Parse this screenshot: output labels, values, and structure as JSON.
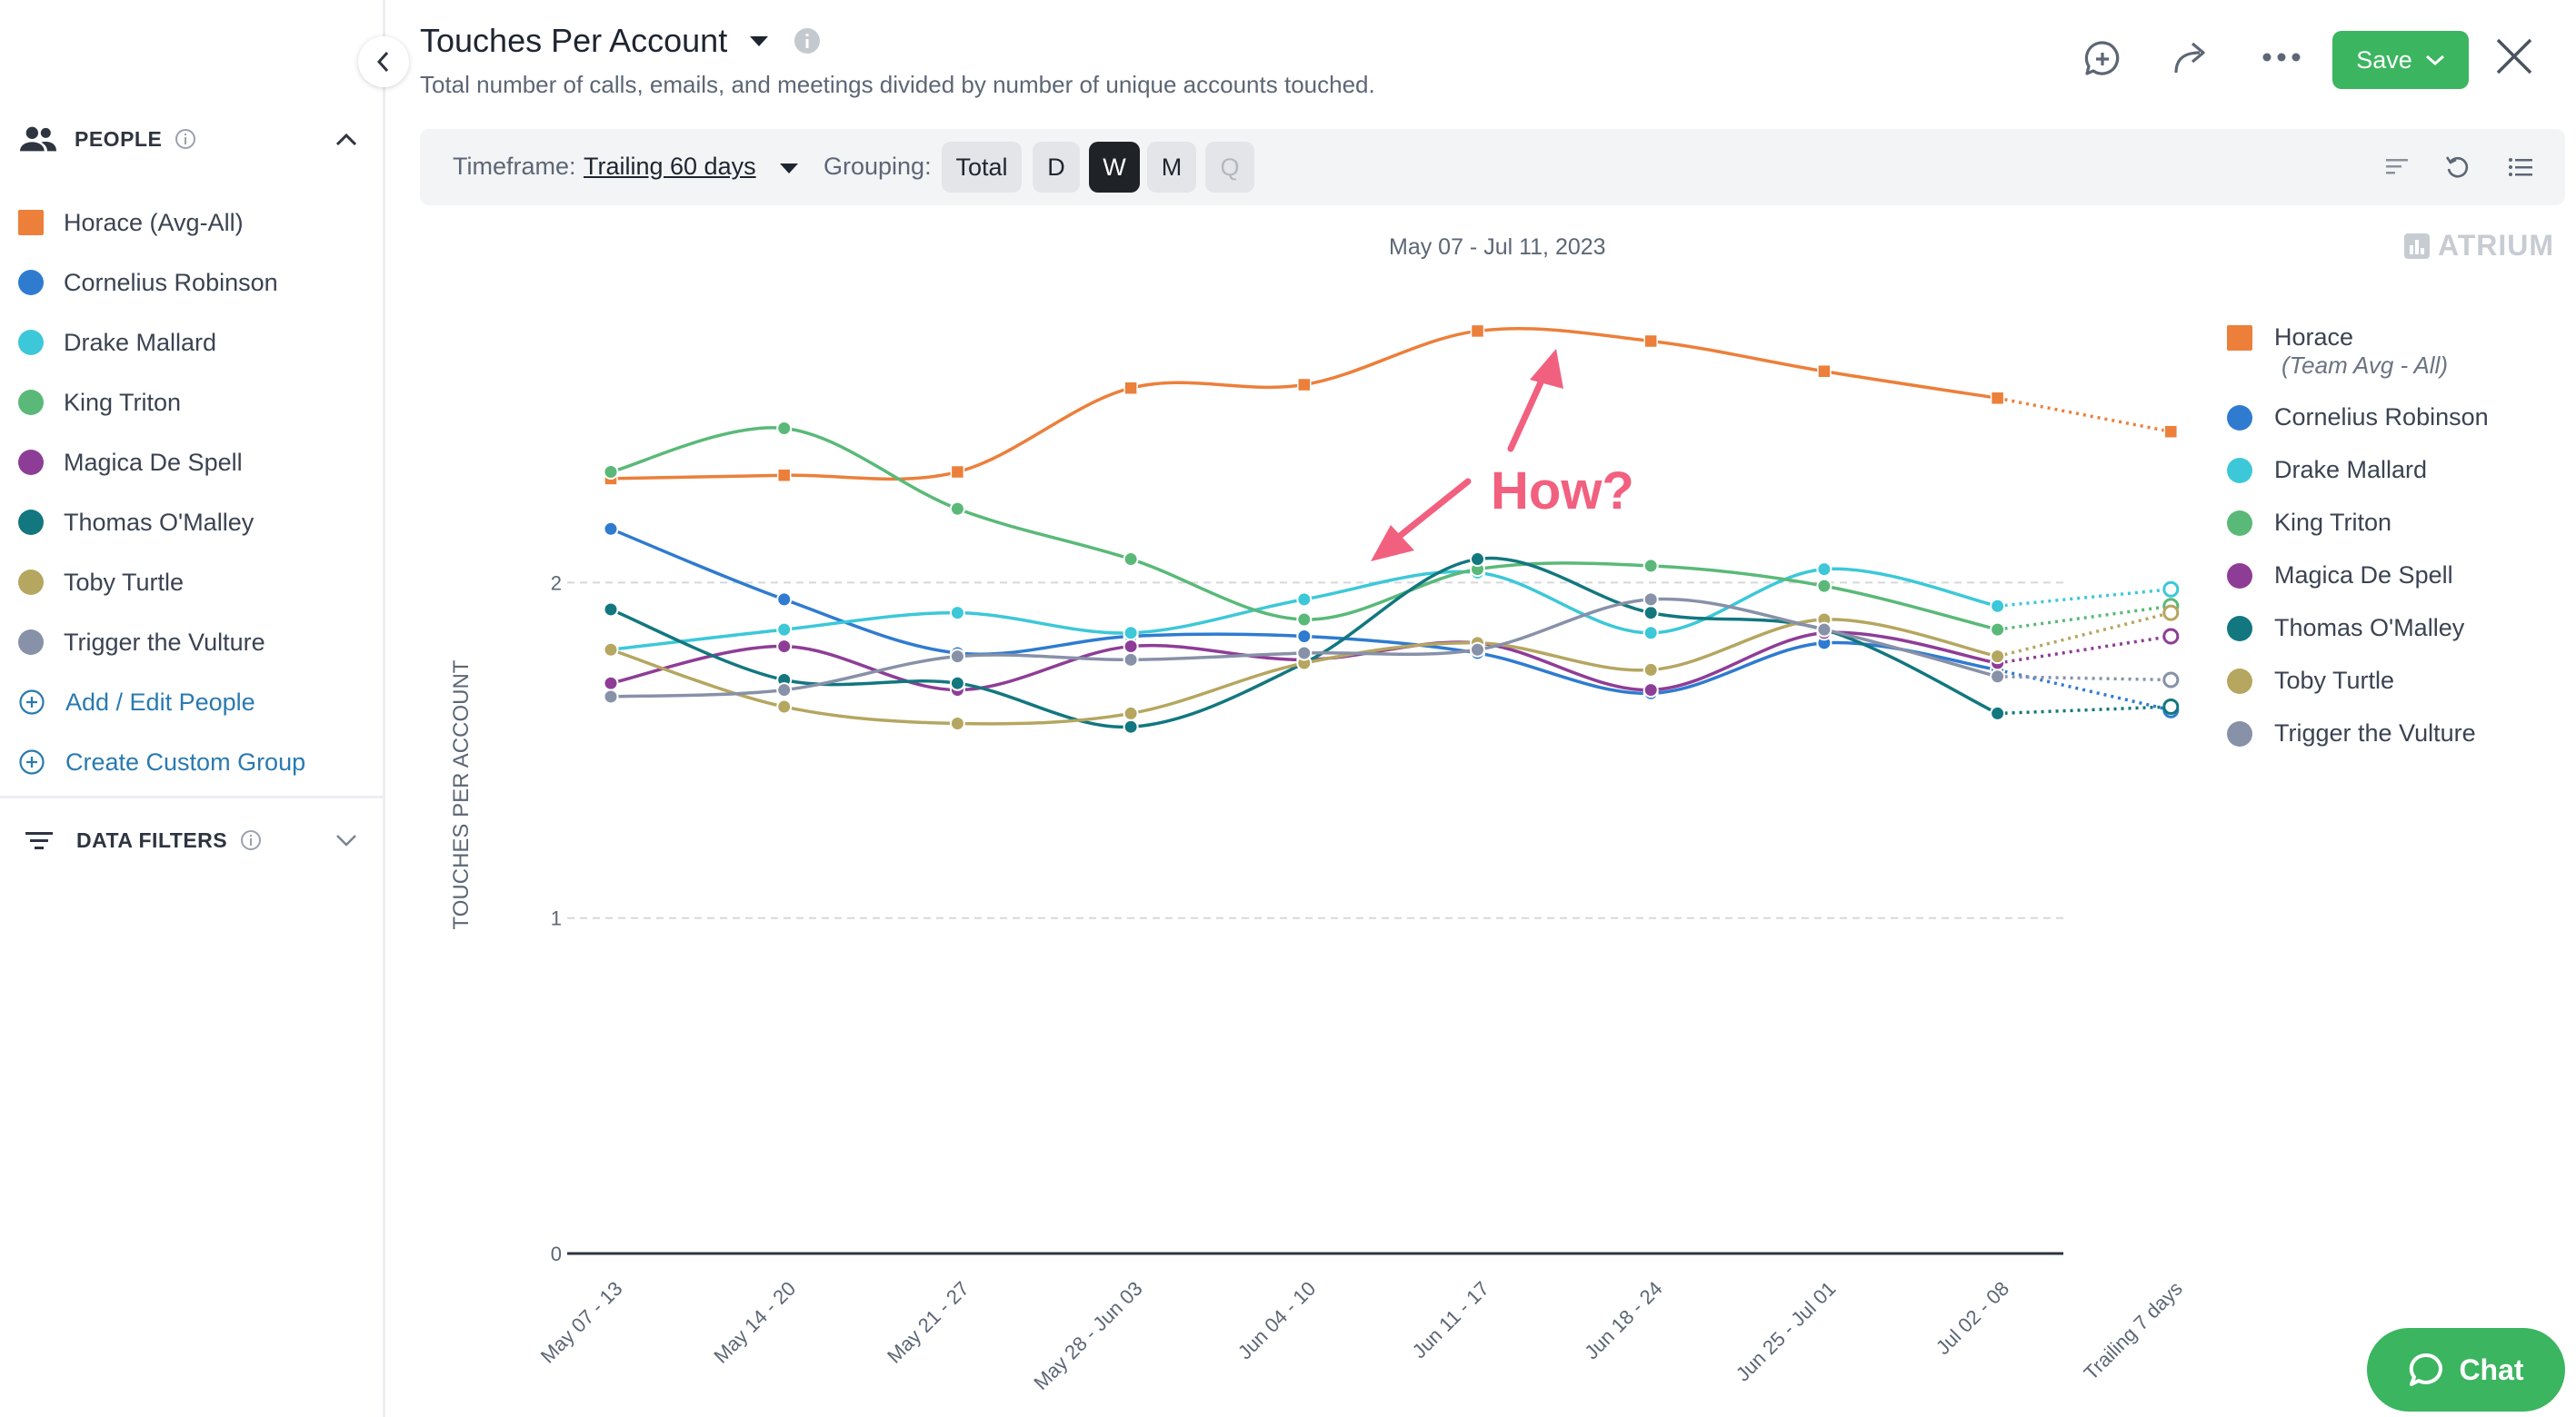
{
  "sidebar": {
    "people_title": "PEOPLE",
    "people": [
      {
        "name": "Horace (Avg-All)",
        "color": "#ec7f3a",
        "shape": "square"
      },
      {
        "name": "Cornelius Robinson",
        "color": "#2f7bd0",
        "shape": "circle"
      },
      {
        "name": "Drake Mallard",
        "color": "#3cc8d8",
        "shape": "circle"
      },
      {
        "name": "King Triton",
        "color": "#5ab978",
        "shape": "circle"
      },
      {
        "name": "Magica De Spell",
        "color": "#8e3d96",
        "shape": "circle"
      },
      {
        "name": "Thomas O'Malley",
        "color": "#12777f",
        "shape": "circle"
      },
      {
        "name": "Toby Turtle",
        "color": "#b5a660",
        "shape": "circle"
      },
      {
        "name": "Trigger the Vulture",
        "color": "#8791a8",
        "shape": "circle"
      }
    ],
    "add_edit_label": "Add / Edit People",
    "custom_group_label": "Create Custom Group",
    "filters_title": "DATA FILTERS"
  },
  "header": {
    "title": "Touches Per Account",
    "subtitle": "Total number of calls, emails, and meetings divided by number of unique accounts touched.",
    "save_label": "Save"
  },
  "toolbar": {
    "timeframe_label": "Timeframe:",
    "timeframe_value": "Trailing 60 days",
    "grouping_label": "Grouping:",
    "grouping_options": [
      "Total",
      "D",
      "W",
      "M",
      "Q"
    ],
    "grouping_selected": "W"
  },
  "chart": {
    "date_range": "May 07 - Jul 11, 2023",
    "brand": "ATRIUM",
    "annotation": "How?"
  },
  "legend": [
    {
      "name": "Horace",
      "sub": "(Team Avg - All)",
      "color": "#ec7f3a",
      "shape": "square"
    },
    {
      "name": "Cornelius Robinson",
      "color": "#2f7bd0"
    },
    {
      "name": "Drake Mallard",
      "color": "#3cc8d8"
    },
    {
      "name": "King Triton",
      "color": "#5ab978"
    },
    {
      "name": "Magica De Spell",
      "color": "#8e3d96"
    },
    {
      "name": "Thomas O'Malley",
      "color": "#12777f"
    },
    {
      "name": "Toby Turtle",
      "color": "#b5a660"
    },
    {
      "name": "Trigger the Vulture",
      "color": "#8791a8"
    }
  ],
  "chart_data": {
    "type": "line",
    "title": "Touches Per Account",
    "subtitle": "May 07 - Jul 11, 2023",
    "xlabel": "",
    "ylabel": "TOUCHES PER ACCOUNT",
    "ylim": [
      0,
      2.8
    ],
    "yticks": [
      0,
      1,
      2
    ],
    "grid": true,
    "categories": [
      "May 07 - 13",
      "May 14 - 20",
      "May 21 - 27",
      "May 28 - Jun 03",
      "Jun 04 - 10",
      "Jun 11 - 17",
      "Jun 18 - 24",
      "Jun 25 - Jul 01",
      "Jul 02 - 08",
      "Trailing 7 days"
    ],
    "series": [
      {
        "name": "Horace (Team Avg - All)",
        "color": "#ec7f3a",
        "marker": "square",
        "values": [
          2.31,
          2.32,
          2.33,
          2.58,
          2.59,
          2.75,
          2.72,
          2.63,
          2.55,
          2.45
        ]
      },
      {
        "name": "Cornelius Robinson",
        "color": "#2f7bd0",
        "marker": "circle",
        "values": [
          2.16,
          1.95,
          1.79,
          1.84,
          1.84,
          1.79,
          1.67,
          1.82,
          1.74,
          1.62
        ]
      },
      {
        "name": "Drake Mallard",
        "color": "#3cc8d8",
        "marker": "circle",
        "values": [
          1.8,
          1.86,
          1.91,
          1.85,
          1.95,
          2.03,
          1.85,
          2.04,
          1.93,
          1.98
        ]
      },
      {
        "name": "King Triton",
        "color": "#5ab978",
        "marker": "circle",
        "values": [
          2.33,
          2.46,
          2.22,
          2.07,
          1.89,
          2.04,
          2.05,
          1.99,
          1.86,
          1.93
        ]
      },
      {
        "name": "Magica De Spell",
        "color": "#8e3d96",
        "marker": "circle",
        "values": [
          1.7,
          1.81,
          1.68,
          1.81,
          1.77,
          1.82,
          1.68,
          1.85,
          1.76,
          1.84
        ]
      },
      {
        "name": "Thomas O'Malley",
        "color": "#12777f",
        "marker": "circle",
        "values": [
          1.92,
          1.71,
          1.7,
          1.57,
          1.76,
          2.07,
          1.91,
          1.86,
          1.61,
          1.63
        ]
      },
      {
        "name": "Toby Turtle",
        "color": "#b5a660",
        "marker": "circle",
        "values": [
          1.8,
          1.63,
          1.58,
          1.61,
          1.76,
          1.82,
          1.74,
          1.89,
          1.78,
          1.91
        ]
      },
      {
        "name": "Trigger the Vulture",
        "color": "#8791a8",
        "marker": "circle",
        "values": [
          1.66,
          1.68,
          1.78,
          1.77,
          1.79,
          1.8,
          1.95,
          1.86,
          1.72,
          1.71
        ]
      }
    ]
  },
  "chat_label": "Chat"
}
